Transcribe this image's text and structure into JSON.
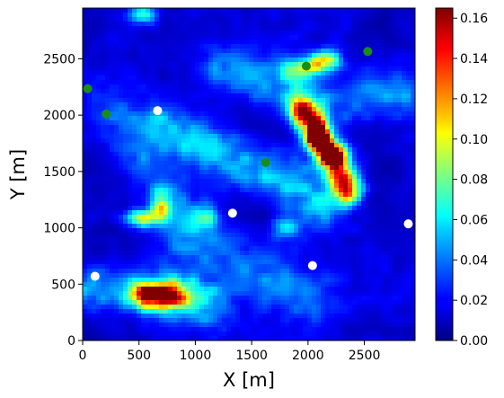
{
  "chart_data": {
    "type": "heatmap",
    "title": "",
    "xlabel": "X [m]",
    "ylabel": "Y [m]",
    "xlim": [
      0,
      2950
    ],
    "ylim": [
      0,
      2950
    ],
    "x_ticks": [
      "0",
      "500",
      "1000",
      "1500",
      "2000",
      "2500"
    ],
    "y_ticks": [
      "0",
      "500",
      "1000",
      "1500",
      "2000",
      "2500"
    ],
    "grid": false,
    "colormap": "jet",
    "colorbar": {
      "min": 0.0,
      "max": 0.165,
      "ticks": [
        "0.00",
        "0.02",
        "0.04",
        "0.06",
        "0.08",
        "0.10",
        "0.12",
        "0.14",
        "0.16"
      ]
    },
    "heat_features": [
      {
        "kind": "ridge",
        "points": [
          [
            1950,
            2050
          ],
          [
            2100,
            1800
          ],
          [
            2250,
            1580
          ],
          [
            2350,
            1350
          ]
        ],
        "value": 0.13,
        "width": 90
      },
      {
        "kind": "peak",
        "x": 2080,
        "y": 1820,
        "value": 0.165,
        "sx": 60,
        "sy": 90
      },
      {
        "kind": "peak",
        "x": 2200,
        "y": 1640,
        "value": 0.15,
        "sx": 60,
        "sy": 70
      },
      {
        "kind": "peak",
        "x": 600,
        "y": 400,
        "value": 0.13,
        "sx": 140,
        "sy": 80
      },
      {
        "kind": "peak",
        "x": 850,
        "y": 400,
        "value": 0.07,
        "sx": 160,
        "sy": 100
      },
      {
        "kind": "peak",
        "x": 530,
        "y": 1090,
        "value": 0.09,
        "sx": 110,
        "sy": 50
      },
      {
        "kind": "peak",
        "x": 700,
        "y": 1200,
        "value": 0.06,
        "sx": 60,
        "sy": 100
      },
      {
        "kind": "peak",
        "x": 2150,
        "y": 2480,
        "value": 0.09,
        "sx": 90,
        "sy": 60
      },
      {
        "kind": "peak",
        "x": 1950,
        "y": 2400,
        "value": 0.06,
        "sx": 120,
        "sy": 80
      },
      {
        "kind": "peak",
        "x": 540,
        "y": 2890,
        "value": 0.05,
        "sx": 80,
        "sy": 60
      },
      {
        "kind": "peak",
        "x": 1800,
        "y": 1000,
        "value": 0.05,
        "sx": 90,
        "sy": 60
      },
      {
        "kind": "peak",
        "x": 1100,
        "y": 1100,
        "value": 0.05,
        "sx": 60,
        "sy": 80
      },
      {
        "kind": "ridge",
        "points": [
          [
            700,
            1900
          ],
          [
            1100,
            1700
          ],
          [
            1500,
            1550
          ],
          [
            1800,
            1400
          ],
          [
            2100,
            1200
          ]
        ],
        "value": 0.04,
        "width": 160
      },
      {
        "kind": "ridge",
        "points": [
          [
            1200,
            2400
          ],
          [
            1600,
            2300
          ],
          [
            1900,
            2200
          ],
          [
            2300,
            2100
          ],
          [
            2800,
            2200
          ]
        ],
        "value": 0.03,
        "width": 150
      },
      {
        "kind": "ridge",
        "points": [
          [
            300,
            2000
          ],
          [
            500,
            1700
          ],
          [
            700,
            1400
          ],
          [
            850,
            1100
          ]
        ],
        "value": 0.025,
        "width": 160
      },
      {
        "kind": "ridge",
        "points": [
          [
            1000,
            900
          ],
          [
            1300,
            700
          ],
          [
            1700,
            500
          ],
          [
            2000,
            350
          ]
        ],
        "value": 0.025,
        "width": 180
      },
      {
        "kind": "ridge",
        "points": [
          [
            0,
            500
          ],
          [
            300,
            450
          ],
          [
            700,
            420
          ],
          [
            1100,
            300
          ]
        ],
        "value": 0.03,
        "width": 150
      }
    ],
    "series": [
      {
        "marker": "white-dot",
        "color": "#ffffff",
        "points": [
          [
            110,
            570
          ],
          [
            665,
            2040
          ],
          [
            1330,
            1130
          ],
          [
            2040,
            665
          ],
          [
            2890,
            1035
          ]
        ]
      },
      {
        "marker": "green-dot",
        "color": "#1a8c1a",
        "points": [
          [
            45,
            2235
          ],
          [
            210,
            2010
          ],
          [
            1625,
            1580
          ],
          [
            1985,
            2435
          ],
          [
            2530,
            2565
          ]
        ]
      }
    ]
  }
}
